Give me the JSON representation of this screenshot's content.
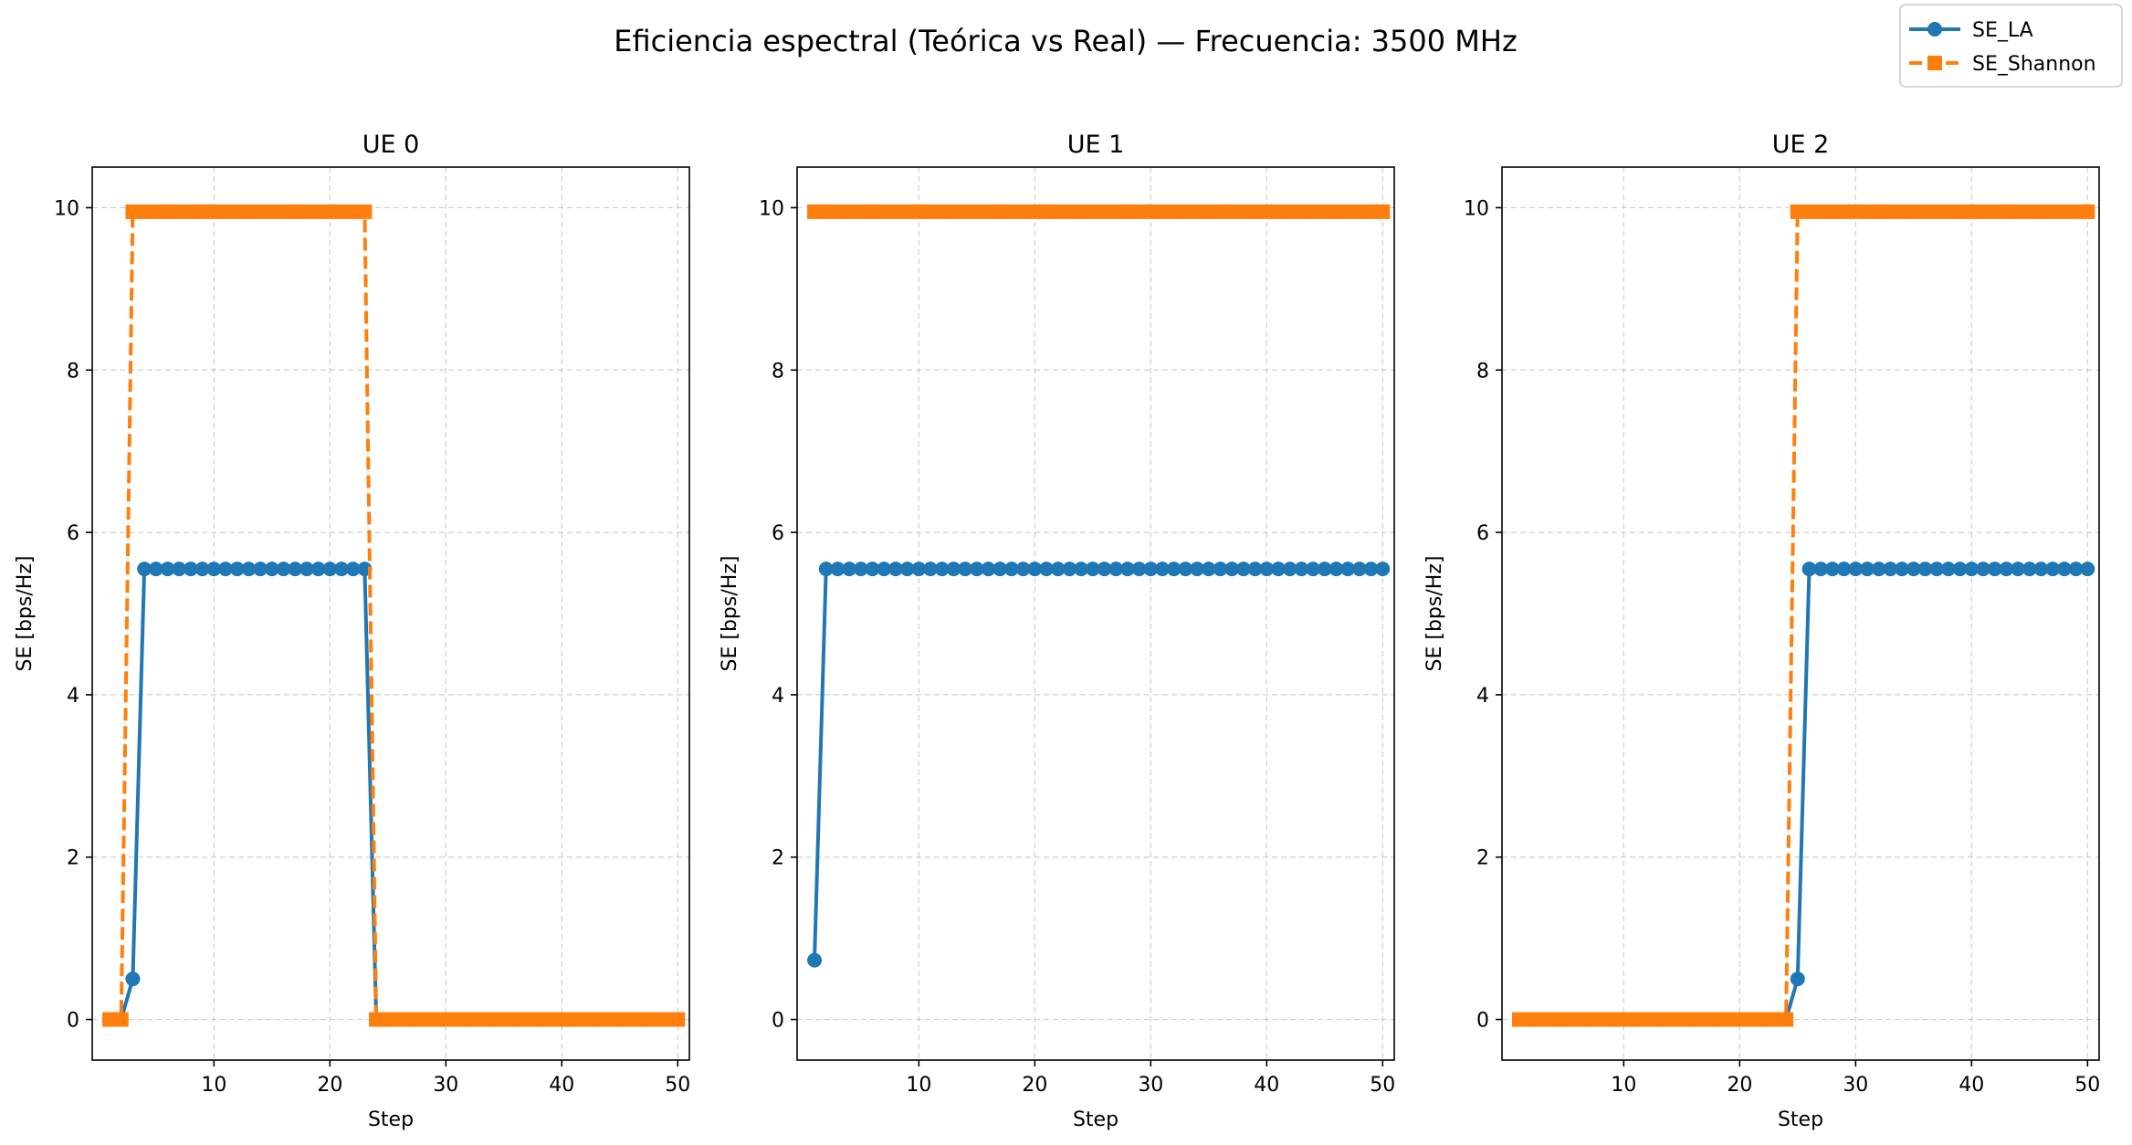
{
  "figure": {
    "suptitle": "Eficiencia espectral (Teórica vs Real) — Frecuencia: 3500 MHz"
  },
  "legend": {
    "placement": "top-right",
    "entries": [
      {
        "label": "SE_LA",
        "color": "#1f77b4",
        "marker": "circle",
        "linestyle": "solid"
      },
      {
        "label": "SE_Shannon",
        "color": "#ff7f0e",
        "marker": "square",
        "linestyle": "dashed"
      }
    ]
  },
  "chart_data": [
    {
      "type": "line",
      "title": "UE 0",
      "xlabel": "Step",
      "ylabel": "SE [bps/Hz]",
      "xlim": [
        -0.5,
        51
      ],
      "ylim": [
        -0.5,
        10.5
      ],
      "xticks": [
        10,
        20,
        30,
        40,
        50
      ],
      "yticks": [
        0,
        2,
        4,
        6,
        8,
        10
      ],
      "grid": true,
      "series": [
        {
          "name": "SE_LA",
          "x_start": 1,
          "x_end": 50,
          "segments": [
            {
              "from": 1,
              "to": 2,
              "value": 0
            },
            {
              "from": 3,
              "to": 3,
              "value": 0.5
            },
            {
              "from": 4,
              "to": 23,
              "value": 5.55
            },
            {
              "from": 24,
              "to": 50,
              "value": 0
            }
          ]
        },
        {
          "name": "SE_Shannon",
          "x_start": 1,
          "x_end": 50,
          "segments": [
            {
              "from": 1,
              "to": 2,
              "value": 0
            },
            {
              "from": 3,
              "to": 23,
              "value": 9.95
            },
            {
              "from": 24,
              "to": 50,
              "value": 0
            }
          ]
        }
      ]
    },
    {
      "type": "line",
      "title": "UE 1",
      "xlabel": "Step",
      "ylabel": "SE [bps/Hz]",
      "xlim": [
        -0.5,
        51
      ],
      "ylim": [
        -0.5,
        10.5
      ],
      "xticks": [
        10,
        20,
        30,
        40,
        50
      ],
      "yticks": [
        0,
        2,
        4,
        6,
        8,
        10
      ],
      "grid": true,
      "series": [
        {
          "name": "SE_LA",
          "x_start": 1,
          "x_end": 50,
          "segments": [
            {
              "from": 1,
              "to": 1,
              "value": 0.73
            },
            {
              "from": 2,
              "to": 50,
              "value": 5.55
            }
          ]
        },
        {
          "name": "SE_Shannon",
          "x_start": 1,
          "x_end": 50,
          "segments": [
            {
              "from": 1,
              "to": 50,
              "value": 9.95
            }
          ]
        }
      ]
    },
    {
      "type": "line",
      "title": "UE 2",
      "xlabel": "Step",
      "ylabel": "SE [bps/Hz]",
      "xlim": [
        -0.5,
        51
      ],
      "ylim": [
        -0.5,
        10.5
      ],
      "xticks": [
        10,
        20,
        30,
        40,
        50
      ],
      "yticks": [
        0,
        2,
        4,
        6,
        8,
        10
      ],
      "grid": true,
      "series": [
        {
          "name": "SE_LA",
          "x_start": 1,
          "x_end": 50,
          "segments": [
            {
              "from": 1,
              "to": 24,
              "value": 0
            },
            {
              "from": 25,
              "to": 25,
              "value": 0.5
            },
            {
              "from": 26,
              "to": 50,
              "value": 5.55
            }
          ]
        },
        {
          "name": "SE_Shannon",
          "x_start": 1,
          "x_end": 50,
          "segments": [
            {
              "from": 1,
              "to": 24,
              "value": 0
            },
            {
              "from": 25,
              "to": 50,
              "value": 9.95
            }
          ]
        }
      ]
    }
  ]
}
